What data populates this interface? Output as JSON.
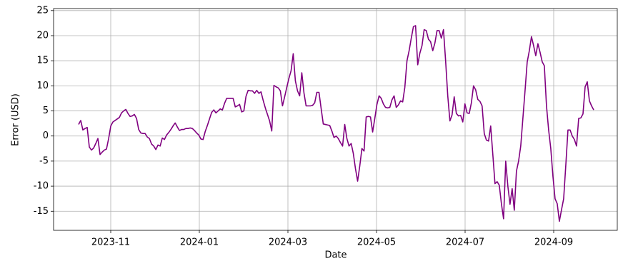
{
  "chart_data": {
    "type": "line",
    "x_label": "Date",
    "y_label": "Error (USD)",
    "color": "#800080",
    "grid": true,
    "ylim": [
      -18.8,
      25.4
    ],
    "yticks": [
      -15,
      -10,
      -5,
      0,
      5,
      10,
      15,
      20,
      25
    ],
    "xticks": [
      "2023-11",
      "2024-01",
      "2024-03",
      "2024-05",
      "2024-07",
      "2024-09"
    ],
    "values": [
      2.3,
      3.1,
      1.2,
      1.5,
      1.7,
      -2.2,
      -2.8,
      -2.4,
      -1.5,
      -0.5,
      -3.7,
      -3.2,
      -2.8,
      -2.6,
      -0.5,
      2.0,
      2.8,
      3.1,
      3.4,
      3.7,
      4.6,
      5.0,
      5.3,
      4.5,
      3.9,
      4.0,
      4.3,
      3.5,
      1.3,
      0.6,
      0.5,
      0.5,
      -0.2,
      -0.5,
      -1.6,
      -2.0,
      -2.7,
      -1.8,
      -2.0,
      -0.4,
      -0.7,
      0.2,
      0.7,
      1.3,
      2.0,
      2.6,
      1.8,
      1.1,
      1.3,
      1.3,
      1.5,
      1.5,
      1.6,
      1.5,
      1.1,
      0.6,
      0.2,
      -0.6,
      -0.7,
      0.9,
      2.1,
      3.4,
      4.7,
      5.2,
      4.6,
      5.0,
      5.4,
      5.2,
      6.5,
      7.5,
      7.5,
      7.5,
      7.5,
      5.8,
      6.0,
      6.3,
      4.8,
      5.0,
      7.9,
      9.1,
      9.0,
      9.0,
      8.5,
      9.1,
      8.5,
      8.8,
      7.1,
      5.6,
      4.3,
      3.0,
      1.0,
      10.1,
      9.8,
      9.6,
      9.0,
      6.0,
      7.8,
      9.7,
      11.5,
      13.0,
      16.4,
      11.0,
      9.0,
      8.0,
      12.6,
      8.6,
      6.0,
      6.0,
      6.0,
      6.1,
      6.6,
      8.7,
      8.7,
      5.5,
      2.4,
      2.3,
      2.2,
      2.1,
      1.0,
      -0.3,
      0.0,
      -0.5,
      -1.3,
      -2.0,
      2.3,
      -0.5,
      -2.0,
      -1.5,
      -3.5,
      -6.5,
      -9.0,
      -6.0,
      -2.5,
      -3.0,
      3.8,
      3.9,
      3.8,
      0.8,
      3.5,
      6.3,
      8.0,
      7.5,
      6.4,
      5.7,
      5.6,
      5.7,
      7.2,
      8.0,
      5.7,
      6.2,
      7.0,
      6.8,
      9.7,
      15.0,
      17.0,
      19.5,
      21.8,
      22.0,
      14.2,
      16.5,
      18.0,
      21.2,
      21.0,
      19.3,
      18.8,
      17.0,
      18.5,
      21.0,
      21.0,
      19.5,
      21.2,
      15.0,
      8.0,
      3.0,
      4.2,
      7.8,
      4.5,
      4.0,
      4.1,
      2.8,
      6.4,
      4.6,
      4.5,
      6.6,
      10.0,
      9.2,
      7.3,
      6.9,
      6.0,
      0.5,
      -0.8,
      -1.0,
      2.0,
      -3.7,
      -9.5,
      -9.1,
      -9.8,
      -13.5,
      -16.5,
      -5.0,
      -10.0,
      -13.6,
      -10.5,
      -14.8,
      -7.0,
      -5.0,
      -2.0,
      3.5,
      9.0,
      14.7,
      17.0,
      19.8,
      18.0,
      16.0,
      18.4,
      16.7,
      14.8,
      14.0,
      6.0,
      1.2,
      -2.5,
      -8.0,
      -12.5,
      -13.5,
      -17.0,
      -14.7,
      -12.5,
      -5.8,
      1.2,
      1.2,
      0.0,
      -0.7,
      -2.0,
      3.5,
      3.6,
      4.4,
      9.8,
      10.8,
      7.0,
      6.0,
      5.2
    ]
  }
}
